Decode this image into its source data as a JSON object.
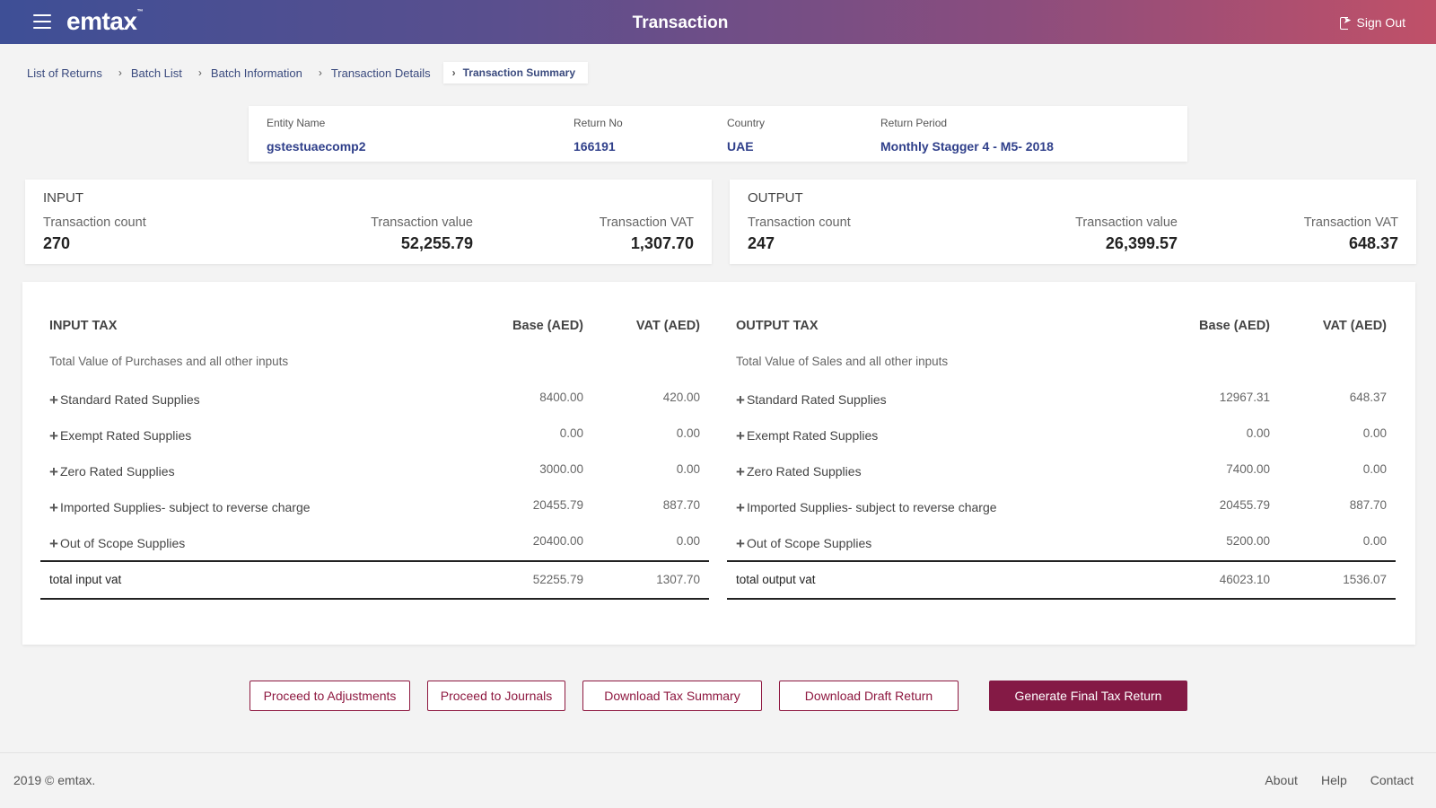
{
  "header": {
    "logo": "emtax",
    "logo_tm": "™",
    "title": "Transaction",
    "signout_label": "Sign Out",
    "menu_icon": "hamburger-menu-icon",
    "signout_icon": "sign-out-icon"
  },
  "breadcrumb": [
    "List of Returns",
    "Batch List",
    "Batch Information",
    "Transaction Details",
    "Transaction Summary"
  ],
  "entity": {
    "entity_name_label": "Entity Name",
    "entity_name": "gstestuaecomp2",
    "return_no_label": "Return No",
    "return_no": "166191",
    "country_label": "Country",
    "country": "UAE",
    "return_period_label": "Return Period",
    "return_period": "Monthly Stagger 4 - M5- 2018"
  },
  "input_summary": {
    "title": "INPUT",
    "count_label": "Transaction count",
    "count": "270",
    "value_label": "Transaction value",
    "value": "52,255.79",
    "vat_label": "Transaction VAT",
    "vat": "1,307.70"
  },
  "output_summary": {
    "title": "OUTPUT",
    "count_label": "Transaction count",
    "count": "247",
    "value_label": "Transaction value",
    "value": "26,399.57",
    "vat_label": "Transaction VAT",
    "vat": "648.37"
  },
  "input_tax": {
    "title": "INPUT TAX",
    "base_header": "Base (AED)",
    "vat_header": "VAT (AED)",
    "subtitle": "Total Value of Purchases and all other inputs",
    "rows": [
      {
        "label": "Standard Rated Supplies",
        "base": "8400.00",
        "vat": "420.00"
      },
      {
        "label": "Exempt Rated Supplies",
        "base": "0.00",
        "vat": "0.00"
      },
      {
        "label": "Zero Rated Supplies",
        "base": "3000.00",
        "vat": "0.00"
      },
      {
        "label": "Imported Supplies- subject to reverse charge",
        "base": "20455.79",
        "vat": "887.70"
      },
      {
        "label": "Out of Scope Supplies",
        "base": "20400.00",
        "vat": "0.00"
      }
    ],
    "total_label": "total input vat",
    "total_base": "52255.79",
    "total_vat": "1307.70"
  },
  "output_tax": {
    "title": "OUTPUT TAX",
    "base_header": "Base (AED)",
    "vat_header": "VAT (AED)",
    "subtitle": "Total Value of Sales and all other inputs",
    "rows": [
      {
        "label": "Standard Rated Supplies",
        "base": "12967.31",
        "vat": "648.37"
      },
      {
        "label": "Exempt Rated Supplies",
        "base": "0.00",
        "vat": "0.00"
      },
      {
        "label": "Zero Rated Supplies",
        "base": "7400.00",
        "vat": "0.00"
      },
      {
        "label": "Imported Supplies- subject to reverse charge",
        "base": "20455.79",
        "vat": "887.70"
      },
      {
        "label": "Out of Scope Supplies",
        "base": "5200.00",
        "vat": "0.00"
      }
    ],
    "total_label": "total output vat",
    "total_base": "46023.10",
    "total_vat": "1536.07"
  },
  "actions": {
    "adjustments": "Proceed to Adjustments",
    "journals": "Proceed to Journals",
    "download_summary": "Download Tax Summary",
    "download_draft": "Download Draft Return",
    "generate_final": "Generate Final Tax Return"
  },
  "footer": {
    "copyright": "2019 © emtax.",
    "links": [
      "About",
      "Help",
      "Contact"
    ]
  },
  "colors": {
    "accent": "#841a45",
    "link": "#2f3f8a",
    "header_start": "#3e4f96",
    "header_end": "#c05068"
  }
}
